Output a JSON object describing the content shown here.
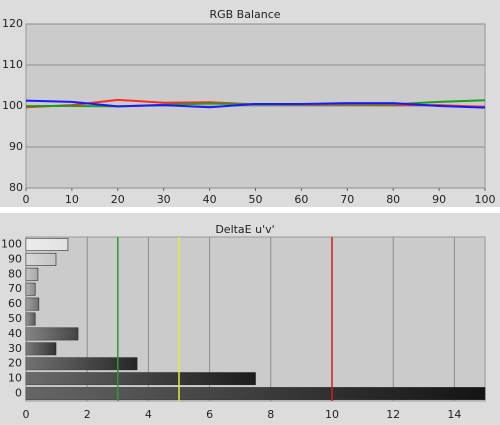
{
  "chart_data": [
    {
      "type": "line",
      "title": "RGB Balance",
      "x": [
        0,
        10,
        20,
        30,
        40,
        50,
        60,
        70,
        80,
        90,
        100
      ],
      "series": [
        {
          "name": "Red",
          "color": "#ff2a2a",
          "values": [
            99.7,
            100.2,
            101.5,
            100.8,
            100.9,
            100.4,
            100.3,
            100.3,
            100.2,
            100.2,
            99.8
          ]
        },
        {
          "name": "Green",
          "color": "#1e9e1e",
          "values": [
            100.0,
            100.0,
            99.9,
            100.3,
            100.6,
            100.4,
            100.4,
            100.5,
            100.4,
            101.0,
            101.4
          ]
        },
        {
          "name": "Blue",
          "color": "#1a1aff",
          "values": [
            101.3,
            101.0,
            99.9,
            100.2,
            99.7,
            100.5,
            100.5,
            100.7,
            100.7,
            100.0,
            99.6
          ]
        }
      ],
      "xlim": [
        0,
        100
      ],
      "xticks": [
        0,
        10,
        20,
        30,
        40,
        50,
        60,
        70,
        80,
        90,
        100
      ],
      "ylim": [
        80,
        120
      ],
      "yticks": [
        80,
        90,
        100,
        110,
        120
      ],
      "grid": true
    },
    {
      "type": "hbar",
      "title": "DeltaE u'v'",
      "categories": [
        "0",
        "10",
        "20",
        "30",
        "40",
        "50",
        "60",
        "70",
        "80",
        "90",
        "100"
      ],
      "values": [
        15,
        7.5,
        3.63,
        0.98,
        1.7,
        0.3,
        0.42,
        0.3,
        0.39,
        0.98,
        1.37
      ],
      "colors": [
        "#141414",
        "#1c1c1c",
        "#262626",
        "#333333",
        "#444444",
        "#5a5a5a",
        "#707070",
        "#8a8a8a",
        "#a6a6a6",
        "#c4c4c4",
        "#e2e2e2"
      ],
      "xlim": [
        0,
        15
      ],
      "xticks": [
        0,
        2,
        4,
        6,
        8,
        10,
        12,
        14
      ],
      "grid": true,
      "reference_lines": [
        {
          "value": 3,
          "color": "#2e9a2e"
        },
        {
          "value": 5,
          "color": "#e8e840"
        },
        {
          "value": 10,
          "color": "#d02020"
        }
      ]
    }
  ]
}
